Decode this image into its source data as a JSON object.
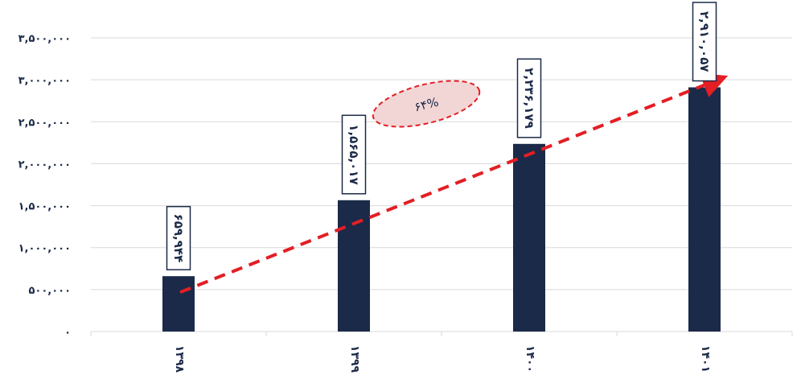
{
  "chart_data": {
    "type": "bar",
    "categories": [
      "۱۳۹۸",
      "۱۳۹۹",
      "۱۴۰۰",
      "۱۴۰۱"
    ],
    "values": [
      659944,
      1565017,
      2236179,
      2910057
    ],
    "data_labels": [
      "۶۵۹,۹۴۴",
      "۱,۵۶۵,۰۱۷",
      "۲,۲۳۶,۱۷۹",
      "۲,۹۱۰,۰۵۷"
    ],
    "y_ticks": [
      0,
      500000,
      1000000,
      1500000,
      2000000,
      2500000,
      3000000,
      3500000
    ],
    "y_tick_labels": [
      "۰",
      "۵۰۰,۰۰۰",
      "۱,۰۰۰,۰۰۰",
      "۱,۵۰۰,۰۰۰",
      "۲,۰۰۰,۰۰۰",
      "۲,۵۰۰,۰۰۰",
      "۳,۰۰۰,۰۰۰",
      "۳,۵۰۰,۰۰۰"
    ],
    "ylim": [
      0,
      3500000
    ],
    "grid": true,
    "legend": "none",
    "annotation": {
      "text": "۶۴%",
      "description": "growth trend arrow from first to last bar"
    },
    "colors": {
      "bar": "#1b2a48",
      "trend": "#e31e24",
      "annotation_fill": "#f2d6d6",
      "grid": "#d9d9d9"
    }
  }
}
